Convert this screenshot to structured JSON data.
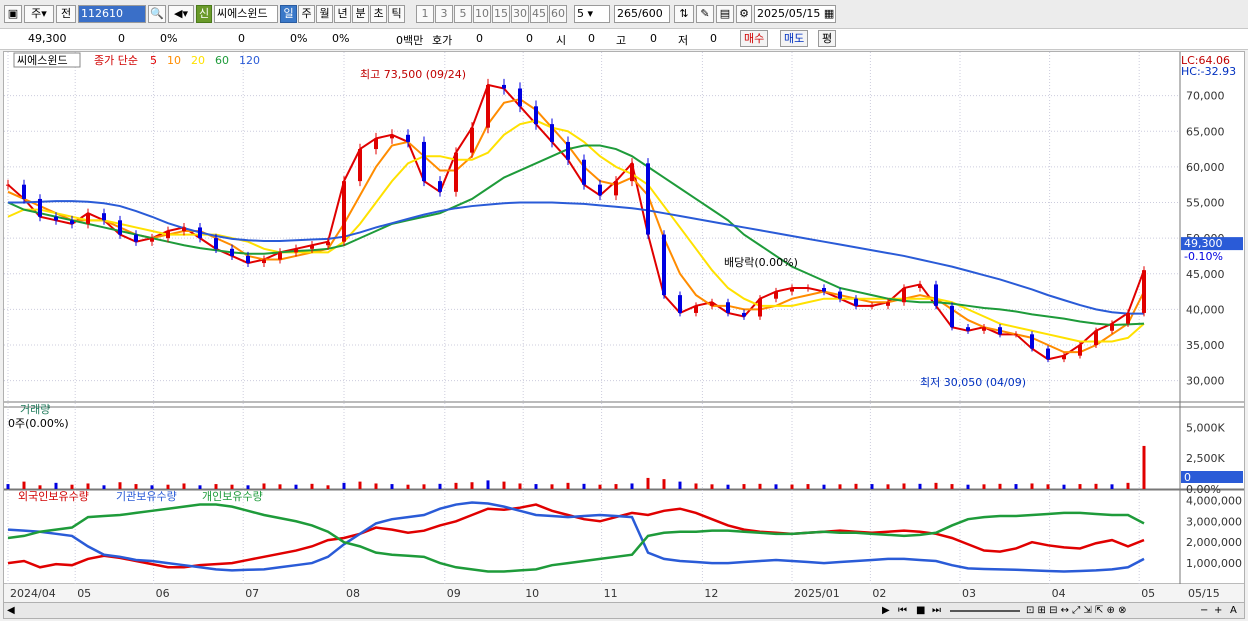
{
  "toolbar": {
    "market": "주",
    "prev_label": "전",
    "code": "112610",
    "stock_name": "씨에스윈드",
    "new_label": "신",
    "periods": [
      "일",
      "주",
      "월",
      "년",
      "분",
      "초",
      "틱"
    ],
    "intervals": [
      "1",
      "3",
      "5",
      "10",
      "15",
      "30",
      "45",
      "60"
    ],
    "interval_value": "5",
    "count": "265",
    "count_total": "/600",
    "date": "2025/05/15"
  },
  "quote": {
    "price": "49,300",
    "change": "0",
    "change_pct": "0%",
    "volume": "0",
    "vol_pct": "0%",
    "rate2": "0%",
    "amount": "0백만",
    "hoga_label": "호가",
    "hoga_v1": "0",
    "hoga_v2": "0",
    "open_label": "시",
    "open_val": "0",
    "high_label": "고",
    "high_val": "0",
    "low_label": "저",
    "low_val": "0",
    "buy_label": "매수",
    "sell_label": "매도",
    "flat_label": "평"
  },
  "chart_data": {
    "type": "line",
    "price_panel": {
      "legend_name": "씨에스윈드",
      "legend_ma_label": "종가 단순",
      "ma_periods": [
        "5",
        "10",
        "20",
        "60",
        "120"
      ],
      "lc_label": "LC:64.06",
      "hc_label": "HC:-32.93",
      "y_ticks": [
        "70,000",
        "65,000",
        "60,000",
        "55,000",
        "50,000",
        "45,000",
        "40,000",
        "35,000",
        "30,000"
      ],
      "y_values": [
        70000,
        65000,
        60000,
        55000,
        50000,
        45000,
        40000,
        35000,
        30000
      ],
      "ylim": [
        27000,
        75000
      ],
      "current_price_label": "49,300",
      "current_price": 49300,
      "current_change_label": "-0.10%",
      "max_annotation": "최고 73,500 (09/24)",
      "min_annotation": "최저 30,050 (04/09)",
      "dividend_annotation": "배당락(0.00%)",
      "series": [
        {
          "name": "5",
          "color": "#e00000",
          "values": [
            57500,
            55500,
            53000,
            52500,
            52000,
            53500,
            52500,
            50500,
            49500,
            50000,
            51000,
            51500,
            50000,
            48500,
            47500,
            46500,
            47000,
            48000,
            48500,
            49000,
            49500,
            58000,
            62500,
            64000,
            64500,
            63500,
            58000,
            56500,
            62000,
            65500,
            71500,
            71000,
            68500,
            66000,
            63500,
            61000,
            57500,
            56000,
            58000,
            60500,
            50500,
            42000,
            39500,
            40500,
            41000,
            39500,
            39000,
            41500,
            42500,
            43000,
            43000,
            42500,
            41500,
            40500,
            40500,
            41000,
            43000,
            43500,
            40500,
            37500,
            37000,
            37500,
            36500,
            36500,
            34500,
            33000,
            33500,
            35000,
            37000,
            38000,
            39500,
            45500
          ]
        },
        {
          "name": "10",
          "color": "#ff8c00",
          "values": [
            56500,
            55500,
            54500,
            53500,
            52500,
            52500,
            52500,
            51500,
            50500,
            50000,
            50500,
            51000,
            51000,
            50000,
            49000,
            47500,
            47000,
            47000,
            47500,
            48000,
            48500,
            52000,
            56000,
            60000,
            63000,
            63500,
            61500,
            59500,
            59500,
            61500,
            66000,
            69000,
            69500,
            68000,
            65500,
            63000,
            60000,
            58000,
            57500,
            58500,
            56000,
            50000,
            45000,
            42000,
            40500,
            40500,
            40000,
            40000,
            40500,
            41500,
            42000,
            42500,
            42000,
            41500,
            41000,
            41000,
            41500,
            42000,
            41500,
            40000,
            38500,
            37500,
            37000,
            36500,
            36000,
            35000,
            34000,
            34000,
            35000,
            36500,
            38000,
            42500
          ]
        },
        {
          "name": "20",
          "color": "#ffe100",
          "values": [
            53000,
            54000,
            54000,
            53500,
            53000,
            52500,
            52500,
            52000,
            51500,
            51000,
            50500,
            50500,
            50500,
            50500,
            50000,
            49500,
            48500,
            48000,
            48000,
            48000,
            48000,
            49500,
            52000,
            55000,
            58000,
            60500,
            61500,
            61500,
            61000,
            61000,
            62000,
            64500,
            66000,
            66500,
            65500,
            65000,
            63500,
            61500,
            60000,
            59000,
            57500,
            54500,
            51500,
            48500,
            45500,
            43000,
            41500,
            40500,
            40500,
            40500,
            41000,
            41500,
            41500,
            41500,
            41500,
            41500,
            41500,
            41500,
            41500,
            41000,
            40000,
            39000,
            38000,
            37500,
            37000,
            36500,
            36000,
            35500,
            35500,
            35500,
            36000,
            38000
          ]
        },
        {
          "name": "60",
          "color": "#1e9b3a",
          "values": [
            55000,
            54000,
            53500,
            53000,
            52500,
            52000,
            51500,
            51000,
            50500,
            50000,
            49500,
            49000,
            48600,
            48300,
            48000,
            47800,
            47800,
            48000,
            48200,
            48300,
            48500,
            49000,
            50000,
            51000,
            52000,
            52500,
            53000,
            53500,
            54500,
            55500,
            57000,
            58500,
            59500,
            60500,
            61500,
            62500,
            63000,
            63000,
            62500,
            61500,
            60000,
            58500,
            57000,
            55500,
            54000,
            52500,
            50500,
            49000,
            47500,
            46000,
            45000,
            44000,
            43000,
            42500,
            42000,
            41500,
            41200,
            41000,
            41000,
            40800,
            40500,
            40200,
            40000,
            39700,
            39300,
            39000,
            38700,
            38300,
            38000,
            37800,
            37900,
            38000
          ]
        },
        {
          "name": "120",
          "color": "#2a5bd7",
          "values": [
            55000,
            55000,
            55100,
            55200,
            55200,
            55100,
            54900,
            54500,
            53800,
            53000,
            52100,
            51400,
            50800,
            50300,
            49900,
            49700,
            49600,
            49600,
            49700,
            49800,
            49900,
            50200,
            50800,
            51500,
            52100,
            52700,
            53300,
            53800,
            54200,
            54500,
            54700,
            54900,
            55000,
            55000,
            55000,
            54900,
            54800,
            54600,
            54400,
            54200,
            53900,
            53500,
            53100,
            52700,
            52300,
            51900,
            51500,
            51100,
            50700,
            50300,
            49900,
            49500,
            49100,
            48700,
            48300,
            47900,
            47500,
            47000,
            46500,
            46000,
            45400,
            44800,
            44200,
            43500,
            42800,
            42000,
            41300,
            40600,
            40000,
            39600,
            39400,
            39400
          ]
        }
      ]
    },
    "volume_panel": {
      "label": "거래량",
      "sub_label": "0주(0.00%)",
      "y_ticks": [
        "5,000K",
        "2,500K",
        "0.00%"
      ],
      "ylim": [
        0,
        6500000
      ],
      "current_label": "0",
      "values": [
        400,
        600,
        300,
        500,
        350,
        450,
        300,
        550,
        400,
        300,
        350,
        450,
        300,
        400,
        350,
        300,
        450,
        380,
        350,
        420,
        300,
        500,
        600,
        450,
        400,
        350,
        380,
        420,
        500,
        550,
        700,
        600,
        450,
        400,
        380,
        500,
        420,
        350,
        400,
        450,
        900,
        800,
        600,
        450,
        380,
        350,
        400,
        420,
        380,
        360,
        400,
        350,
        380,
        420,
        400,
        380,
        450,
        420,
        500,
        400,
        350,
        380,
        420,
        400,
        450,
        380,
        350,
        400,
        420,
        380,
        500,
        3500
      ]
    },
    "holdings_panel": {
      "labels": [
        "외국인보유수량",
        "기관보유수량",
        "개인보유수량"
      ],
      "y_ticks": [
        "4,000,000",
        "3,000,000",
        "2,000,000",
        "1,000,000"
      ],
      "ylim": [
        0,
        4400000
      ],
      "series": [
        {
          "name": "외국인보유수량",
          "color": "#e00000",
          "values": [
            1000000,
            1100000,
            800000,
            950000,
            900000,
            1200000,
            1350000,
            1250000,
            1100000,
            950000,
            800000,
            800000,
            900000,
            950000,
            1000000,
            1150000,
            1300000,
            1450000,
            1600000,
            1800000,
            2100000,
            2200000,
            2400000,
            2700000,
            2600000,
            2450000,
            2550000,
            2800000,
            3000000,
            3300000,
            3600000,
            3550000,
            3650000,
            3800000,
            3500000,
            3300000,
            3100000,
            3000000,
            3200000,
            3400000,
            3300000,
            3500000,
            3600000,
            3400000,
            3100000,
            2800000,
            2600000,
            2500000,
            2450000,
            2400000,
            2450000,
            2500000,
            2550000,
            2500000,
            2450000,
            2500000,
            2550000,
            2500000,
            2400000,
            2200000,
            1900000,
            1600000,
            1550000,
            1700000,
            2000000,
            1850000,
            1750000,
            1700000,
            1950000,
            2100000,
            1800000,
            2100000
          ]
        },
        {
          "name": "기관보유수량",
          "color": "#2a5bd7",
          "values": [
            2600000,
            2550000,
            2500000,
            2400000,
            2300000,
            1800000,
            1400000,
            1300000,
            1150000,
            1100000,
            1000000,
            900000,
            800000,
            700000,
            650000,
            680000,
            700000,
            800000,
            900000,
            1000000,
            1300000,
            1900000,
            2400000,
            2900000,
            3100000,
            3200000,
            3300000,
            3600000,
            3800000,
            3900000,
            3850000,
            3700000,
            3500000,
            3300000,
            3250000,
            3200000,
            3250000,
            3300000,
            3250000,
            3200000,
            1500000,
            1200000,
            1100000,
            1050000,
            1000000,
            1000000,
            1050000,
            1100000,
            1150000,
            1100000,
            1050000,
            1000000,
            1050000,
            1100000,
            1150000,
            1200000,
            1200000,
            1150000,
            1100000,
            900000,
            750000,
            720000,
            700000,
            680000,
            650000,
            620000,
            600000,
            620000,
            650000,
            700000,
            800000,
            1200000
          ]
        },
        {
          "name": "개인보유수량",
          "color": "#1e9b3a",
          "values": [
            2200000,
            2300000,
            2500000,
            2600000,
            2700000,
            3200000,
            3250000,
            3300000,
            3400000,
            3500000,
            3600000,
            3700000,
            3800000,
            3800000,
            3700000,
            3500000,
            3300000,
            3150000,
            3000000,
            2800000,
            2500000,
            2000000,
            1800000,
            1500000,
            1400000,
            1350000,
            1300000,
            1000000,
            800000,
            700000,
            600000,
            600000,
            650000,
            700000,
            900000,
            1000000,
            1100000,
            1200000,
            1300000,
            1400000,
            2300000,
            2450000,
            2500000,
            2500000,
            2550000,
            2550000,
            2500000,
            2450000,
            2400000,
            2400000,
            2450000,
            2500000,
            2450000,
            2450000,
            2400000,
            2350000,
            2300000,
            2350000,
            2450000,
            2800000,
            3100000,
            3200000,
            3250000,
            3250000,
            3300000,
            3350000,
            3400000,
            3400000,
            3350000,
            3300000,
            3300000,
            2900000
          ]
        }
      ]
    },
    "x_labels": [
      {
        "label": "2024/04",
        "i": 0
      },
      {
        "label": "05",
        "i": 6
      },
      {
        "label": "06",
        "i": 13
      },
      {
        "label": "07",
        "i": 21
      },
      {
        "label": "08",
        "i": 30
      },
      {
        "label": "09",
        "i": 39
      },
      {
        "label": "10",
        "i": 46
      },
      {
        "label": "11",
        "i": 53
      },
      {
        "label": "12",
        "i": 62
      },
      {
        "label": "2025/01",
        "i": 70
      },
      {
        "label": "02",
        "i": 77
      },
      {
        "label": "03",
        "i": 85
      },
      {
        "label": "04",
        "i": 93
      },
      {
        "label": "05",
        "i": 101
      }
    ],
    "x_end_label": "05/15"
  },
  "colors": {
    "up": "#e00000",
    "down": "#0000e0",
    "current_box": "#2a5bd7"
  }
}
